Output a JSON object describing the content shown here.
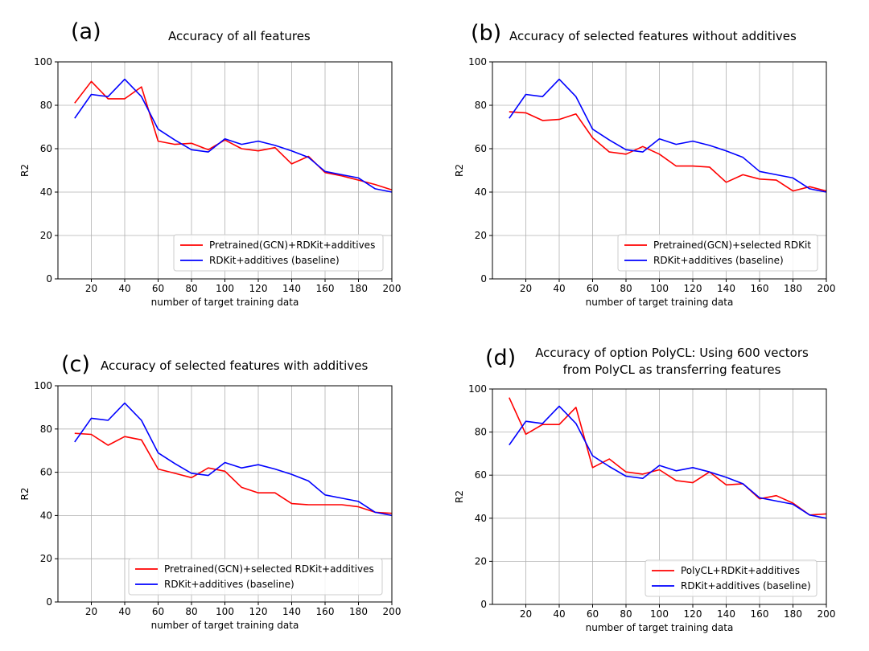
{
  "chart_data": [
    {
      "type": "line",
      "panel_label": "(a)",
      "title": "Accuracy of all features",
      "xlabel": "number of target training data",
      "ylabel": "R2",
      "xlim": [
        0,
        200
      ],
      "ylim": [
        0,
        100
      ],
      "xticks": [
        20,
        40,
        60,
        80,
        100,
        120,
        140,
        160,
        180,
        200
      ],
      "yticks": [
        0,
        20,
        40,
        60,
        80,
        100
      ],
      "grid": true,
      "legend_position": "lower-right",
      "x": [
        10,
        20,
        30,
        40,
        50,
        60,
        70,
        80,
        90,
        100,
        110,
        120,
        130,
        140,
        150,
        160,
        170,
        180,
        190,
        200
      ],
      "series": [
        {
          "name": "Pretrained(GCN)+RDKit+additives",
          "color": "#ff0000",
          "values": [
            81,
            91,
            83,
            83,
            88.5,
            63.5,
            62,
            62.5,
            59.5,
            64,
            60,
            59,
            60.5,
            53,
            56.5,
            49,
            47.5,
            45.5,
            43.5,
            41
          ]
        },
        {
          "name": "RDKit+additives (baseline)",
          "color": "#0000ff",
          "values": [
            74,
            85,
            84,
            92,
            84,
            69,
            64,
            59.5,
            58.5,
            64.5,
            62,
            63.5,
            61.5,
            59,
            56,
            49.5,
            48,
            46.5,
            41.5,
            40
          ]
        }
      ]
    },
    {
      "type": "line",
      "panel_label": "(b)",
      "title": "Accuracy of selected features without additives",
      "xlabel": "number of target training data",
      "ylabel": "R2",
      "xlim": [
        0,
        200
      ],
      "ylim": [
        0,
        100
      ],
      "xticks": [
        20,
        40,
        60,
        80,
        100,
        120,
        140,
        160,
        180,
        200
      ],
      "yticks": [
        0,
        20,
        40,
        60,
        80,
        100
      ],
      "grid": true,
      "legend_position": "lower-right",
      "x": [
        10,
        20,
        30,
        40,
        50,
        60,
        70,
        80,
        90,
        100,
        110,
        120,
        130,
        140,
        150,
        160,
        170,
        180,
        190,
        200
      ],
      "series": [
        {
          "name": "Pretrained(GCN)+selected RDKit",
          "color": "#ff0000",
          "values": [
            77,
            76.5,
            73,
            73.5,
            76,
            65,
            58.5,
            57.5,
            61,
            57.5,
            52,
            52,
            51.5,
            44.5,
            48,
            46,
            45.5,
            40.5,
            42.5,
            40.5
          ]
        },
        {
          "name": "RDKit+additives (baseline)",
          "color": "#0000ff",
          "values": [
            74,
            85,
            84,
            92,
            84,
            69,
            64,
            59.5,
            58.5,
            64.5,
            62,
            63.5,
            61.5,
            59,
            56,
            49.5,
            48,
            46.5,
            41.5,
            40
          ]
        }
      ]
    },
    {
      "type": "line",
      "panel_label": "(c)",
      "title": "Accuracy of selected features with additives",
      "xlabel": "number of target training data",
      "ylabel": "R2",
      "xlim": [
        0,
        200
      ],
      "ylim": [
        0,
        100
      ],
      "xticks": [
        20,
        40,
        60,
        80,
        100,
        120,
        140,
        160,
        180,
        200
      ],
      "yticks": [
        0,
        20,
        40,
        60,
        80,
        100
      ],
      "grid": true,
      "legend_position": "lower-right",
      "x": [
        10,
        20,
        30,
        40,
        50,
        60,
        70,
        80,
        90,
        100,
        110,
        120,
        130,
        140,
        150,
        160,
        170,
        180,
        190,
        200
      ],
      "series": [
        {
          "name": "Pretrained(GCN)+selected RDKit+additives",
          "color": "#ff0000",
          "values": [
            78,
            77.5,
            72.5,
            76.5,
            75,
            61.5,
            59.5,
            57.5,
            62,
            60.5,
            53,
            50.5,
            50.5,
            45.5,
            45,
            45,
            45,
            44,
            41.5,
            41
          ]
        },
        {
          "name": "RDKit+additives (baseline)",
          "color": "#0000ff",
          "values": [
            74,
            85,
            84,
            92,
            84,
            69,
            64,
            59.5,
            58.5,
            64.5,
            62,
            63.5,
            61.5,
            59,
            56,
            49.5,
            48,
            46.5,
            41.5,
            40
          ]
        }
      ]
    },
    {
      "type": "line",
      "panel_label": "(d)",
      "title": "Accuracy of option PolyCL: Using 600 vectors from PolyCL as transferring features",
      "title_lines": [
        "Accuracy of option PolyCL: Using 600 vectors",
        "from PolyCL as transferring features"
      ],
      "xlabel": "number of target training data",
      "ylabel": "R2",
      "xlim": [
        0,
        200
      ],
      "ylim": [
        0,
        100
      ],
      "xticks": [
        20,
        40,
        60,
        80,
        100,
        120,
        140,
        160,
        180,
        200
      ],
      "yticks": [
        0,
        20,
        40,
        60,
        80,
        100
      ],
      "grid": true,
      "legend_position": "lower-right",
      "x": [
        10,
        20,
        30,
        40,
        50,
        60,
        70,
        80,
        90,
        100,
        110,
        120,
        130,
        140,
        150,
        160,
        170,
        180,
        190,
        200
      ],
      "series": [
        {
          "name": "PolyCL+RDKit+additives",
          "color": "#ff0000",
          "values": [
            96,
            79,
            83.5,
            83.5,
            91.5,
            63.5,
            67.5,
            61.5,
            60.5,
            62.5,
            57.5,
            56.5,
            61.5,
            55.5,
            56,
            49,
            50.5,
            47,
            41.5,
            42
          ]
        },
        {
          "name": "RDKit+additives (baseline)",
          "color": "#0000ff",
          "values": [
            74,
            85,
            84,
            92,
            84,
            69,
            64,
            59.5,
            58.5,
            64.5,
            62,
            63.5,
            61.5,
            59,
            56,
            49.5,
            48,
            46.5,
            41.5,
            40
          ]
        }
      ]
    }
  ]
}
